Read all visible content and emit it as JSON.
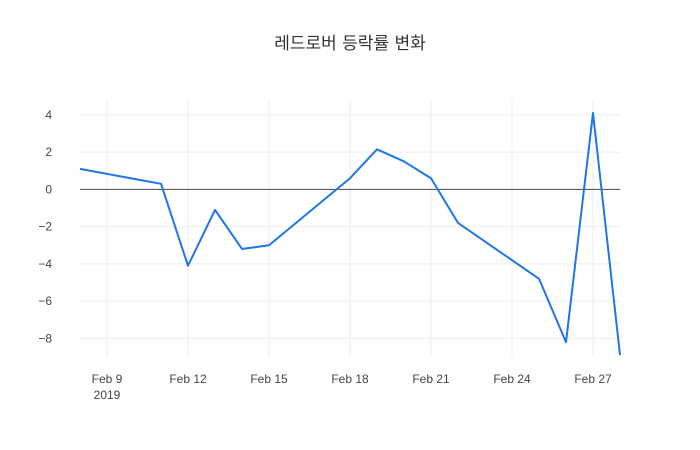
{
  "chart_data": {
    "type": "line",
    "title": "레드로버 등락률 변화",
    "xlabel": "",
    "ylabel": "",
    "x_ticks": [
      {
        "date": "2019-02-09",
        "label": "Feb 9",
        "sublabel": "2019"
      },
      {
        "date": "2019-02-12",
        "label": "Feb 12",
        "sublabel": ""
      },
      {
        "date": "2019-02-15",
        "label": "Feb 15",
        "sublabel": ""
      },
      {
        "date": "2019-02-18",
        "label": "Feb 18",
        "sublabel": ""
      },
      {
        "date": "2019-02-21",
        "label": "Feb 21",
        "sublabel": ""
      },
      {
        "date": "2019-02-24",
        "label": "Feb 24",
        "sublabel": ""
      },
      {
        "date": "2019-02-27",
        "label": "Feb 27",
        "sublabel": ""
      }
    ],
    "y_ticks": [
      {
        "value": 4,
        "label": "4"
      },
      {
        "value": 2,
        "label": "2"
      },
      {
        "value": 0,
        "label": "0"
      },
      {
        "value": -2,
        "label": "−2"
      },
      {
        "value": -4,
        "label": "−4"
      },
      {
        "value": -6,
        "label": "−6"
      },
      {
        "value": -8,
        "label": "−8"
      }
    ],
    "xlim": [
      "2019-02-08",
      "2019-02-28"
    ],
    "ylim": [
      -9,
      4.8
    ],
    "grid": true,
    "zero_line": true,
    "series": [
      {
        "color": "#1f77e4",
        "points": [
          {
            "x": "2019-02-08",
            "y": 1.1
          },
          {
            "x": "2019-02-11",
            "y": 0.3
          },
          {
            "x": "2019-02-12",
            "y": -4.1
          },
          {
            "x": "2019-02-13",
            "y": -1.1
          },
          {
            "x": "2019-02-14",
            "y": -3.2
          },
          {
            "x": "2019-02-15",
            "y": -3.0
          },
          {
            "x": "2019-02-18",
            "y": 0.6
          },
          {
            "x": "2019-02-19",
            "y": 2.15
          },
          {
            "x": "2019-02-20",
            "y": 1.5
          },
          {
            "x": "2019-02-21",
            "y": 0.6
          },
          {
            "x": "2019-02-22",
            "y": -1.8
          },
          {
            "x": "2019-02-25",
            "y": -4.8
          },
          {
            "x": "2019-02-26",
            "y": -8.2
          },
          {
            "x": "2019-02-27",
            "y": 4.1
          },
          {
            "x": "2019-02-28",
            "y": -8.9
          }
        ]
      }
    ]
  }
}
